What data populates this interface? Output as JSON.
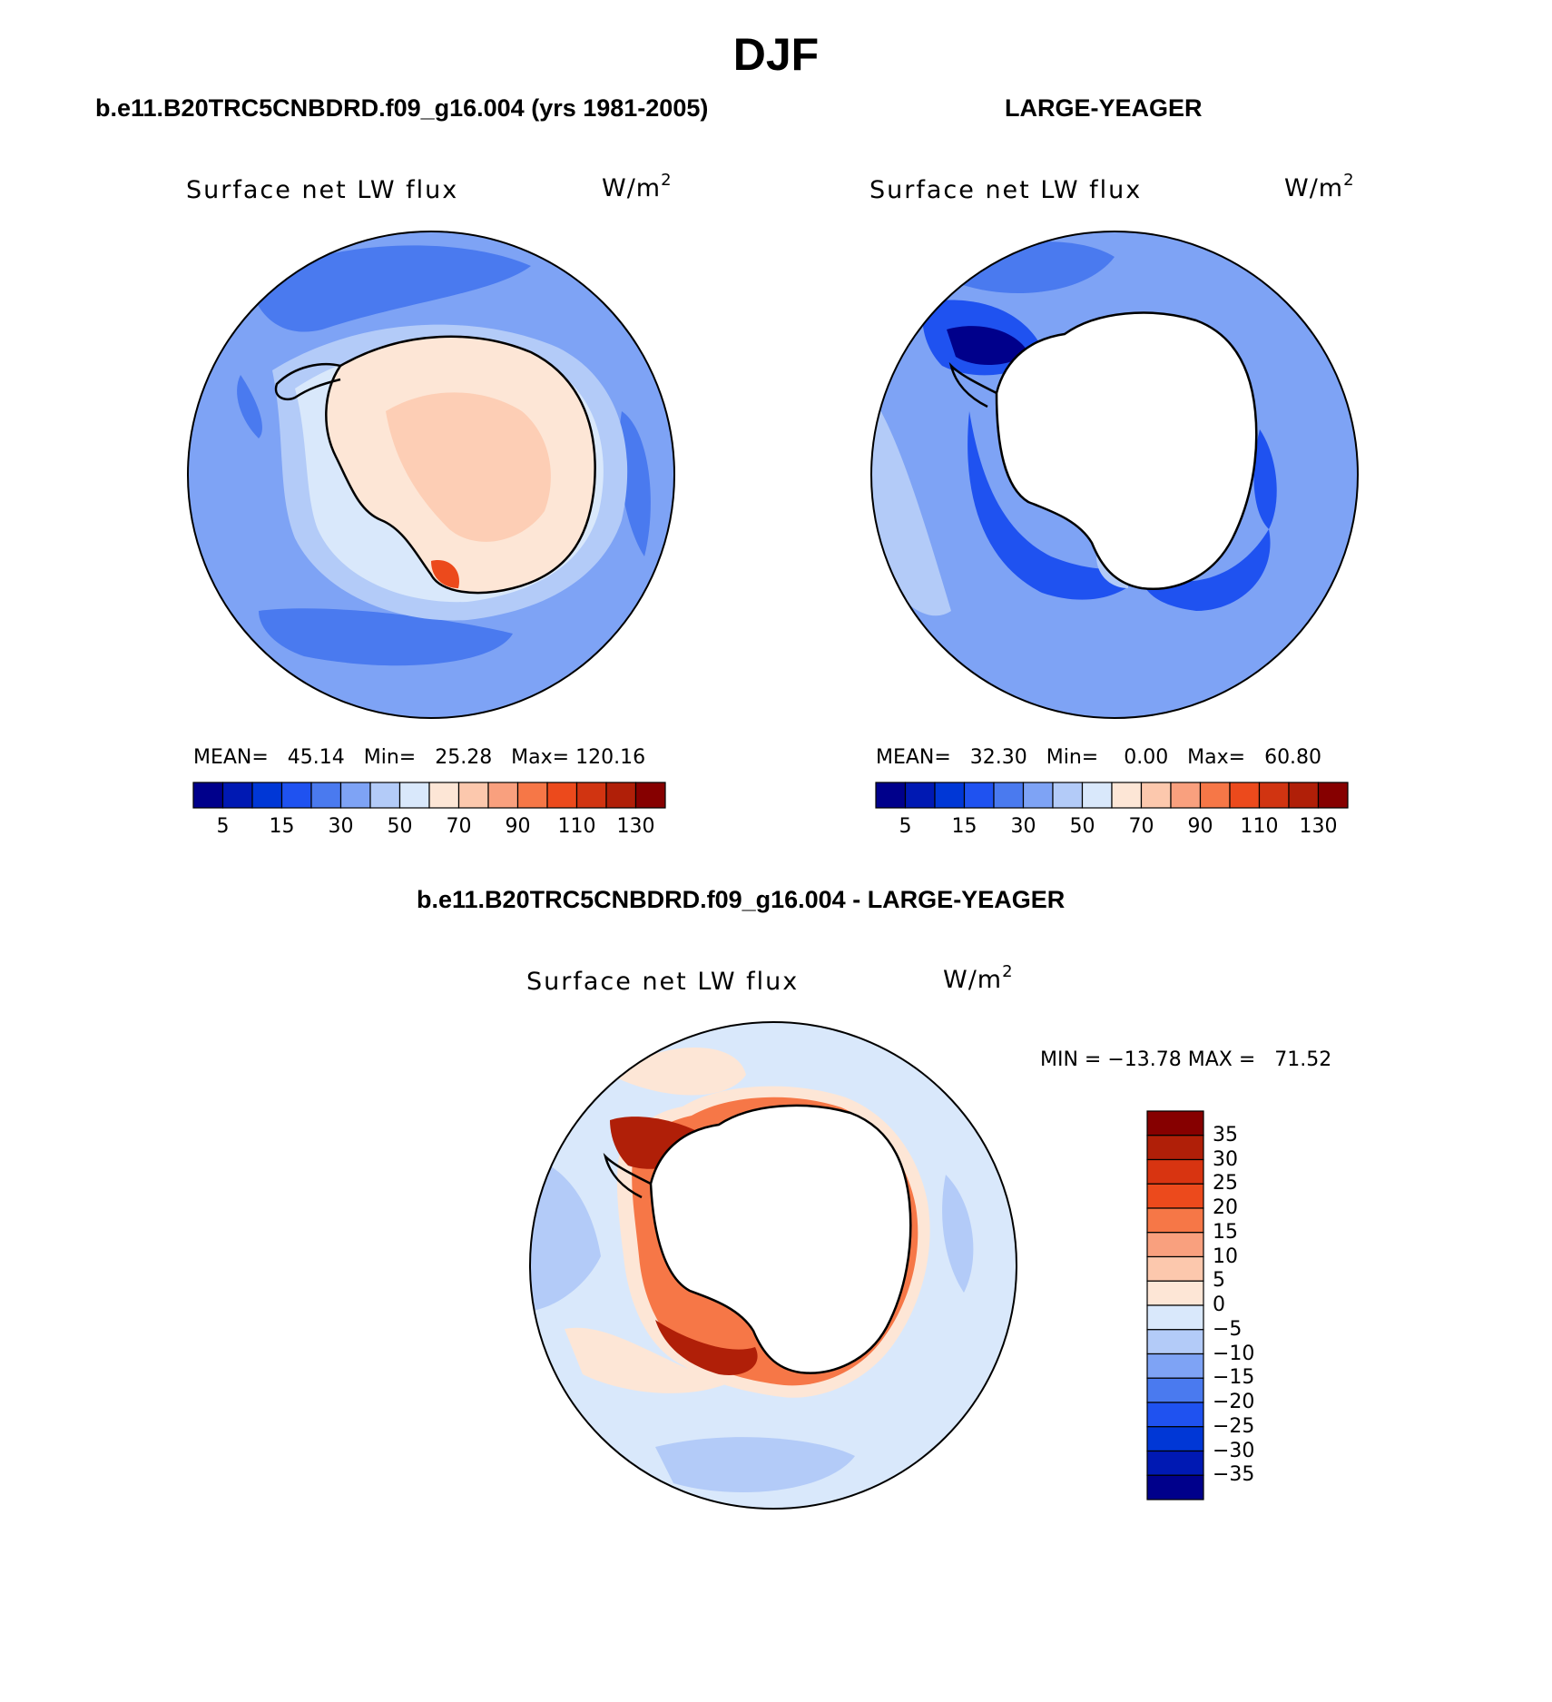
{
  "figure": {
    "title": "DJF"
  },
  "panels": [
    {
      "title": "b.e11.B20TRC5CNBDRD.f09_g16.004 (yrs 1981-2005)",
      "field_label": "Surface net LW flux",
      "units_base": "W/m",
      "units_exp": "2",
      "stats": "MEAN=   45.14   Min=   25.28   Max= 120.16",
      "colorbar": {
        "colors": [
          "#00008b",
          "#0019b3",
          "#0037d6",
          "#1f52f0",
          "#4a7aef",
          "#7ea3f5",
          "#b3cbf8",
          "#d9e8fb",
          "#fde6d6",
          "#fcc8ad",
          "#f9a07e",
          "#f67747",
          "#ec4a1c",
          "#d13411",
          "#b01f08",
          "#860000"
        ],
        "tick_labels": [
          "5",
          "15",
          "30",
          "50",
          "70",
          "90",
          "110",
          "130"
        ]
      }
    },
    {
      "title": "LARGE-YEAGER",
      "field_label": "Surface net LW flux",
      "units_base": "W/m",
      "units_exp": "2",
      "stats": "MEAN=   32.30   Min=    0.00   Max=   60.80",
      "colorbar": {
        "colors": [
          "#00008b",
          "#0019b3",
          "#0037d6",
          "#1f52f0",
          "#4a7aef",
          "#7ea3f5",
          "#b3cbf8",
          "#d9e8fb",
          "#fde6d6",
          "#fcc8ad",
          "#f9a07e",
          "#f67747",
          "#ec4a1c",
          "#d13411",
          "#b01f08",
          "#860000"
        ],
        "tick_labels": [
          "5",
          "15",
          "30",
          "50",
          "70",
          "90",
          "110",
          "130"
        ]
      }
    }
  ],
  "difference": {
    "title": "b.e11.B20TRC5CNBDRD.f09_g16.004 - LARGE-YEAGER",
    "field_label": "Surface net LW flux",
    "units_base": "W/m",
    "units_exp": "2",
    "stats": "MIN = −13.78 MAX =   71.52",
    "colorbar": {
      "colors": [
        "#860000",
        "#b01f08",
        "#d83411",
        "#ec4a1c",
        "#f67747",
        "#f9a07e",
        "#fcc8ad",
        "#fde6d6",
        "#d9e8fb",
        "#b3cbf8",
        "#7ea3f5",
        "#4a7aef",
        "#1f52f0",
        "#0037d6",
        "#0019b3",
        "#00008b"
      ],
      "tick_labels": [
        "35",
        "30",
        "25",
        "20",
        "15",
        "10",
        "5",
        "0",
        "−5",
        "−10",
        "−15",
        "−20",
        "−25",
        "−30",
        "−35"
      ]
    }
  },
  "map_colors": {
    "open_ocean_mid": "#7ea3f5",
    "open_ocean_dark": "#4a7aef",
    "open_ocean_light": "#b3cbf8",
    "shelf_pale": "#d9e8fb",
    "land_warm": "#fde6d6",
    "land_warmer": "#fcc8ad",
    "hot_spot": "#ec4a1c",
    "missing": "#ffffff",
    "diff_ocean": "#d9e8fb",
    "diff_negative": "#b3cbf8",
    "diff_positive_light": "#fde6d6",
    "diff_positive_dark": "#b01f08"
  }
}
